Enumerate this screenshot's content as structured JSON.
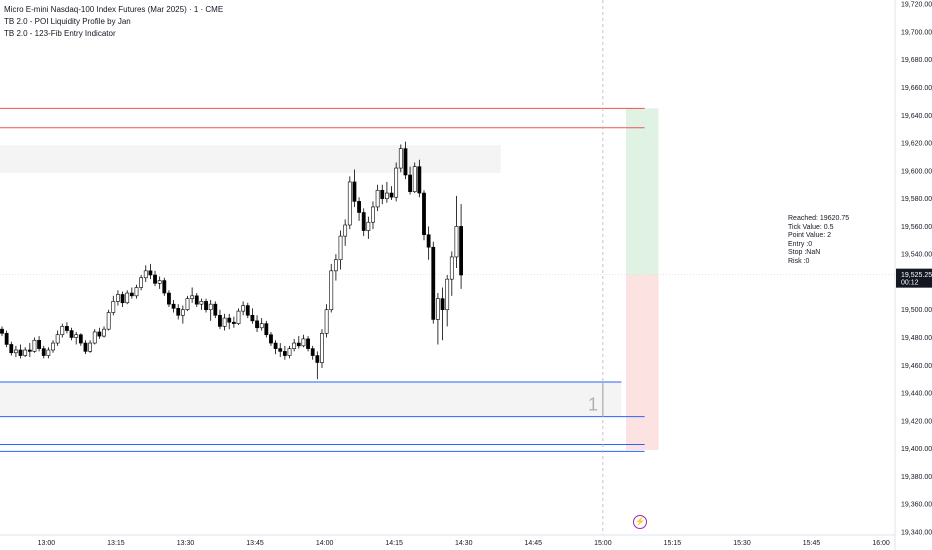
{
  "legend": {
    "symbol_line": "Micro E-mini Nasdaq-100 Index Futures (Mar 2025) · 1 · CME",
    "indicator_1": "TB 2.0 - POI Liquidity Profile by Jan",
    "indicator_2": "TB 2.0 - 123-Fib Entry Indicator"
  },
  "info_panel": {
    "reached": "Reached: 19620.75",
    "tick_value": "Tick Value: 0.5",
    "point_value": "Point Value: 2",
    "entry": "Entry :0",
    "stop": "Stop :NaN",
    "risk": "Risk :0"
  },
  "zone_label": "1",
  "price_tag": {
    "price": "19,525.25",
    "countdown": "00:12",
    "color": "#131722"
  },
  "flash_icon": "lightning-icon",
  "colors": {
    "up_candle_body": "#ffffff",
    "down_candle_body": "#000000",
    "wick": "#000000",
    "red_level": "#ef5350",
    "blue_level": "#2962ff",
    "zone_fill": "#ececec",
    "profit_zone": "#e0f2e4",
    "loss_zone": "#fde2e2",
    "crosshair": "#b2b5be"
  },
  "chart_data": {
    "type": "candlestick",
    "symbol": "Micro E-mini Nasdaq-100 Index Futures (Mar 2025)",
    "interval": "1",
    "y_ticks": [
      19340,
      19360,
      19380,
      19400,
      19420,
      19440,
      19460,
      19480,
      19500,
      19520,
      19540,
      19560,
      19580,
      19600,
      19620,
      19640,
      19660,
      19680,
      19700,
      19720
    ],
    "y_tick_labels": [
      "19,340.00",
      "19,360.00",
      "19,380.00",
      "19,400.00",
      "19,420.00",
      "19,440.00",
      "19,460.00",
      "19,480.00",
      "19,500.00",
      "19,520.00",
      "19,540.00",
      "19,560.00",
      "19,580.00",
      "19,600.00",
      "19,620.00",
      "19,640.00",
      "19,660.00",
      "19,680.00",
      "19,700.00",
      "19,720.00"
    ],
    "ylim": [
      19327,
      19723
    ],
    "x_ticks": [
      "13:00",
      "13:15",
      "13:30",
      "13:45",
      "14:00",
      "14:15",
      "14:30",
      "14:45",
      "15:00",
      "15:15",
      "15:30",
      "15:45",
      "16:00"
    ],
    "xlim": [
      "12:50",
      "16:03"
    ],
    "candle_start": "12:50",
    "candles": [
      [
        19486,
        19488,
        19481,
        19483
      ],
      [
        19483,
        19485,
        19473,
        19475
      ],
      [
        19475,
        19477,
        19467,
        19469
      ],
      [
        19469,
        19474,
        19466,
        19471
      ],
      [
        19471,
        19475,
        19465,
        19467
      ],
      [
        19467,
        19473,
        19466,
        19471
      ],
      [
        19471,
        19476,
        19466,
        19470
      ],
      [
        19470,
        19480,
        19469,
        19478
      ],
      [
        19478,
        19481,
        19470,
        19472
      ],
      [
        19472,
        19474,
        19465,
        19467
      ],
      [
        19467,
        19473,
        19465,
        19471
      ],
      [
        19471,
        19478,
        19469,
        19476
      ],
      [
        19476,
        19485,
        19474,
        19482
      ],
      [
        19482,
        19490,
        19480,
        19488
      ],
      [
        19488,
        19491,
        19483,
        19485
      ],
      [
        19485,
        19487,
        19478,
        19480
      ],
      [
        19480,
        19484,
        19475,
        19482
      ],
      [
        19482,
        19483,
        19474,
        19476
      ],
      [
        19476,
        19478,
        19468,
        19470
      ],
      [
        19470,
        19478,
        19469,
        19476
      ],
      [
        19476,
        19486,
        19475,
        19484
      ],
      [
        19484,
        19487,
        19479,
        19481
      ],
      [
        19481,
        19488,
        19480,
        19486
      ],
      [
        19486,
        19500,
        19485,
        19498
      ],
      [
        19498,
        19510,
        19496,
        19506
      ],
      [
        19506,
        19514,
        19503,
        19511
      ],
      [
        19511,
        19513,
        19502,
        19505
      ],
      [
        19505,
        19514,
        19504,
        19512
      ],
      [
        19512,
        19516,
        19508,
        19510
      ],
      [
        19510,
        19518,
        19508,
        19516
      ],
      [
        19516,
        19525,
        19514,
        19523
      ],
      [
        19523,
        19532,
        19520,
        19528
      ],
      [
        19528,
        19533,
        19522,
        19525
      ],
      [
        19525,
        19528,
        19517,
        19519
      ],
      [
        19519,
        19524,
        19515,
        19521
      ],
      [
        19521,
        19523,
        19510,
        19512
      ],
      [
        19512,
        19514,
        19502,
        19504
      ],
      [
        19504,
        19507,
        19498,
        19501
      ],
      [
        19501,
        19504,
        19493,
        19496
      ],
      [
        19496,
        19503,
        19490,
        19500
      ],
      [
        19500,
        19510,
        19499,
        19508
      ],
      [
        19508,
        19516,
        19505,
        19510
      ],
      [
        19510,
        19512,
        19502,
        19504
      ],
      [
        19504,
        19508,
        19500,
        19506
      ],
      [
        19506,
        19508,
        19498,
        19500
      ],
      [
        19500,
        19507,
        19492,
        19504
      ],
      [
        19504,
        19506,
        19494,
        19496
      ],
      [
        19496,
        19500,
        19486,
        19488
      ],
      [
        19488,
        19497,
        19485,
        19494
      ],
      [
        19494,
        19497,
        19486,
        19491
      ],
      [
        19491,
        19495,
        19487,
        19490
      ],
      [
        19490,
        19501,
        19489,
        19499
      ],
      [
        19499,
        19506,
        19496,
        19503
      ],
      [
        19503,
        19505,
        19494,
        19496
      ],
      [
        19496,
        19501,
        19490,
        19492
      ],
      [
        19492,
        19496,
        19484,
        19487
      ],
      [
        19487,
        19494,
        19485,
        19490
      ],
      [
        19490,
        19492,
        19480,
        19482
      ],
      [
        19482,
        19484,
        19474,
        19476
      ],
      [
        19476,
        19478,
        19468,
        19472
      ],
      [
        19472,
        19476,
        19466,
        19470
      ],
      [
        19470,
        19474,
        19464,
        19467
      ],
      [
        19467,
        19474,
        19465,
        19472
      ],
      [
        19472,
        19479,
        19470,
        19476
      ],
      [
        19476,
        19481,
        19472,
        19474
      ],
      [
        19474,
        19482,
        19473,
        19479
      ],
      [
        19479,
        19481,
        19470,
        19472
      ],
      [
        19472,
        19474,
        19464,
        19467
      ],
      [
        19467,
        19470,
        19450,
        19462
      ],
      [
        19462,
        19486,
        19458,
        19483
      ],
      [
        19483,
        19504,
        19480,
        19500
      ],
      [
        19500,
        19533,
        19498,
        19528
      ],
      [
        19528,
        19540,
        19521,
        19536
      ],
      [
        19536,
        19557,
        19529,
        19553
      ],
      [
        19553,
        19565,
        19546,
        19561
      ],
      [
        19561,
        19596,
        19558,
        19592
      ],
      [
        19592,
        19601,
        19574,
        19578
      ],
      [
        19578,
        19581,
        19564,
        19570
      ],
      [
        19570,
        19573,
        19553,
        19557
      ],
      [
        19557,
        19567,
        19551,
        19563
      ],
      [
        19563,
        19578,
        19558,
        19574
      ],
      [
        19574,
        19590,
        19571,
        19586
      ],
      [
        19586,
        19590,
        19576,
        19580
      ],
      [
        19580,
        19592,
        19577,
        19584
      ],
      [
        19584,
        19589,
        19579,
        19581
      ],
      [
        19581,
        19606,
        19578,
        19602
      ],
      [
        19602,
        19619,
        19599,
        19616
      ],
      [
        19616,
        19621,
        19594,
        19597
      ],
      [
        19597,
        19603,
        19583,
        19585
      ],
      [
        19585,
        19606,
        19584,
        19603
      ],
      [
        19603,
        19608,
        19581,
        19584
      ],
      [
        19584,
        19586,
        19550,
        19554
      ],
      [
        19554,
        19560,
        19536,
        19545
      ],
      [
        19545,
        19549,
        19490,
        19493
      ],
      [
        19493,
        19512,
        19475,
        19508
      ],
      [
        19508,
        19516,
        19478,
        19500
      ],
      [
        19500,
        19525,
        19488,
        19522
      ],
      [
        19522,
        19542,
        19510,
        19538
      ],
      [
        19538,
        19582,
        19530,
        19560
      ],
      [
        19560,
        19576,
        19515,
        19525
      ]
    ],
    "levels": {
      "red": [
        19645,
        19631
      ],
      "blue": [
        19448,
        19423,
        19403,
        19398
      ],
      "gray_zone_top": [
        19618.5,
        19598.5
      ],
      "gray_zone_bottom": [
        19448,
        19423
      ]
    },
    "position": {
      "target": 19645,
      "entry": 19525.25,
      "stop": 19399
    },
    "last_price": 19525.25
  }
}
